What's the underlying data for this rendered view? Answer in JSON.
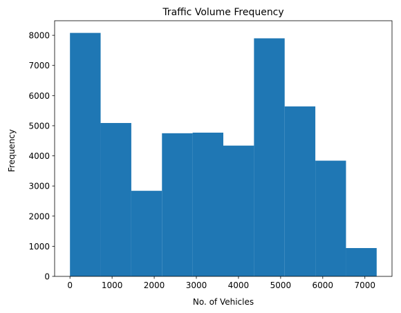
{
  "chart_data": {
    "type": "bar",
    "title": "Traffic Volume Frequency",
    "xlabel": "No. of Vehicles",
    "ylabel": "Frequency",
    "bin_edges": [
      0,
      728,
      1456,
      2184,
      2912,
      3640,
      4368,
      5096,
      5824,
      6552,
      7280
    ],
    "values": [
      8080,
      5090,
      2840,
      4750,
      4770,
      4340,
      7900,
      5640,
      3840,
      940
    ],
    "xlim": [
      -364,
      7644
    ],
    "ylim": [
      0,
      8484
    ],
    "x_ticks": [
      0,
      1000,
      2000,
      3000,
      4000,
      5000,
      6000,
      7000
    ],
    "y_ticks": [
      0,
      1000,
      2000,
      3000,
      4000,
      5000,
      6000,
      7000,
      8000
    ],
    "bar_color": "#1f77b4",
    "grid": false
  }
}
